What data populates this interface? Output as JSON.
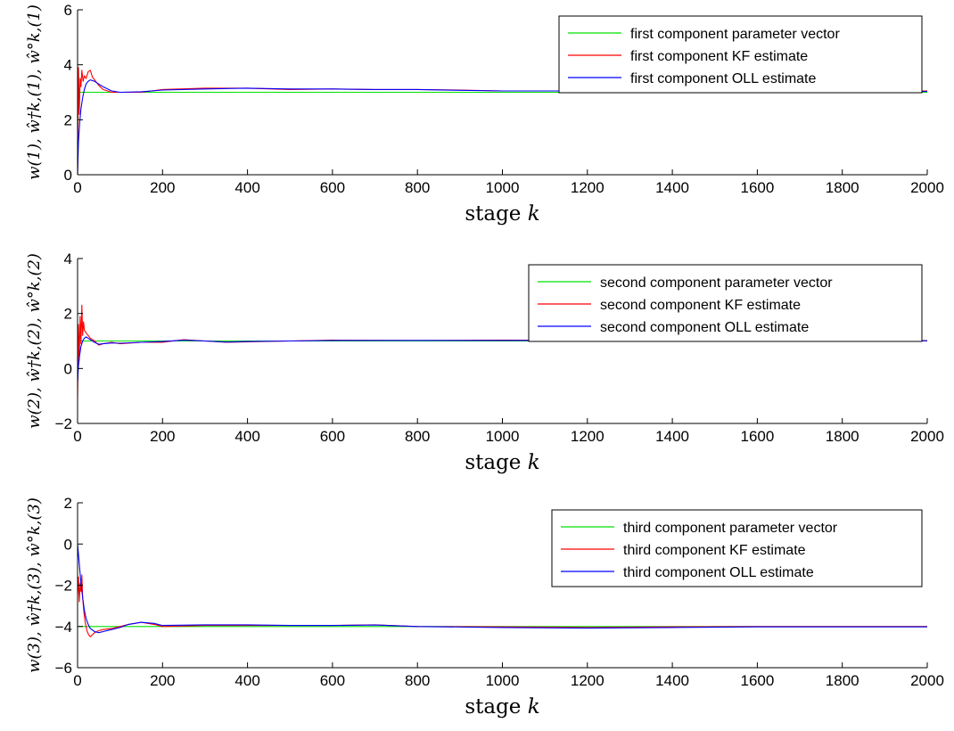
{
  "chart_data": [
    {
      "type": "line",
      "xlabel": "stage k",
      "ylabel": "w(1), ŵ†k,(1), ŵ°k,(1)",
      "xlim": [
        0,
        2000
      ],
      "ylim": [
        0,
        6
      ],
      "xticks": [
        0,
        200,
        400,
        600,
        800,
        1000,
        1200,
        1400,
        1600,
        1800,
        2000
      ],
      "yticks": [
        0,
        2,
        4,
        6
      ],
      "grid": false,
      "legend_position": "top-right",
      "series": [
        {
          "name": "first component parameter vector",
          "color": "#00e000",
          "x": [
            0,
            2000
          ],
          "y": [
            3.0,
            3.0
          ]
        },
        {
          "name": "first component KF estimate",
          "color": "#ff0000",
          "x": [
            0,
            2,
            4,
            6,
            8,
            10,
            13,
            16,
            20,
            25,
            30,
            35,
            40,
            50,
            60,
            80,
            100,
            150,
            200,
            300,
            400,
            500,
            600,
            700,
            800,
            900,
            1000,
            1200,
            1400,
            1600,
            1800,
            2000
          ],
          "y": [
            0.0,
            3.9,
            2.2,
            3.5,
            3.2,
            3.8,
            3.4,
            3.6,
            3.5,
            3.75,
            3.8,
            3.55,
            3.45,
            3.25,
            3.1,
            3.0,
            3.0,
            3.0,
            3.1,
            3.15,
            3.15,
            3.1,
            3.12,
            3.1,
            3.1,
            3.08,
            3.05,
            3.05,
            3.05,
            3.05,
            3.05,
            3.05
          ]
        },
        {
          "name": "first component OLL estimate",
          "color": "#0000ff",
          "x": [
            0,
            2,
            5,
            8,
            12,
            16,
            20,
            25,
            30,
            40,
            50,
            60,
            80,
            100,
            150,
            200,
            300,
            400,
            500,
            600,
            700,
            800,
            900,
            1000,
            1200,
            1400,
            1600,
            1800,
            2000
          ],
          "y": [
            0.0,
            1.2,
            1.9,
            2.4,
            2.8,
            3.1,
            3.3,
            3.4,
            3.45,
            3.4,
            3.3,
            3.2,
            3.05,
            3.0,
            3.02,
            3.08,
            3.12,
            3.15,
            3.12,
            3.12,
            3.1,
            3.1,
            3.07,
            3.05,
            3.05,
            3.05,
            3.04,
            3.04,
            3.03
          ]
        }
      ]
    },
    {
      "type": "line",
      "xlabel": "stage k",
      "ylabel": "w(2), ŵ†k,(2), ŵ°k,(2)",
      "xlim": [
        0,
        2000
      ],
      "ylim": [
        -2,
        4
      ],
      "xticks": [
        0,
        200,
        400,
        600,
        800,
        1000,
        1200,
        1400,
        1600,
        1800,
        2000
      ],
      "yticks": [
        -2,
        0,
        2,
        4
      ],
      "grid": false,
      "legend_position": "top-right",
      "series": [
        {
          "name": "second component parameter vector",
          "color": "#00e000",
          "x": [
            0,
            2000
          ],
          "y": [
            1.0,
            1.0
          ]
        },
        {
          "name": "second component KF estimate",
          "color": "#ff0000",
          "x": [
            0,
            2,
            4,
            6,
            8,
            10,
            12,
            14,
            16,
            20,
            25,
            30,
            40,
            50,
            60,
            80,
            100,
            150,
            200,
            250,
            300,
            350,
            400,
            500,
            600,
            800,
            1000,
            1200,
            1400,
            1600,
            1800,
            2000
          ],
          "y": [
            -1.1,
            1.6,
            0.3,
            1.9,
            0.9,
            2.3,
            1.2,
            1.7,
            1.4,
            1.3,
            1.2,
            1.1,
            1.0,
            0.85,
            0.9,
            0.95,
            0.9,
            0.95,
            0.95,
            1.05,
            1.0,
            0.95,
            0.97,
            1.0,
            1.03,
            1.02,
            1.03,
            1.02,
            1.02,
            1.01,
            1.01,
            1.01
          ]
        },
        {
          "name": "second component OLL estimate",
          "color": "#0000ff",
          "x": [
            0,
            2,
            5,
            8,
            12,
            16,
            20,
            25,
            30,
            40,
            50,
            60,
            80,
            100,
            150,
            200,
            250,
            300,
            350,
            400,
            500,
            600,
            800,
            1000,
            1200,
            1400,
            1600,
            1800,
            2000
          ],
          "y": [
            -0.5,
            0.1,
            0.5,
            0.8,
            1.0,
            1.1,
            1.15,
            1.1,
            1.05,
            0.95,
            0.88,
            0.9,
            0.93,
            0.92,
            0.95,
            0.98,
            1.03,
            1.0,
            0.96,
            0.98,
            1.0,
            1.02,
            1.02,
            1.02,
            1.02,
            1.01,
            1.01,
            1.01,
            1.01
          ]
        }
      ]
    },
    {
      "type": "line",
      "xlabel": "stage k",
      "ylabel": "w(3), ŵ†k,(3), ŵ°k,(3)",
      "xlim": [
        0,
        2000
      ],
      "ylim": [
        -6,
        2
      ],
      "xticks": [
        0,
        200,
        400,
        600,
        800,
        1000,
        1200,
        1400,
        1600,
        1800,
        2000
      ],
      "yticks": [
        -6,
        -4,
        -2,
        0,
        2
      ],
      "grid": false,
      "legend_position": "top-right",
      "series": [
        {
          "name": "third component parameter vector",
          "color": "#00e000",
          "x": [
            0,
            2000
          ],
          "y": [
            -4.0,
            -4.0
          ]
        },
        {
          "name": "third component KF estimate",
          "color": "#ff0000",
          "x": [
            0,
            2,
            4,
            6,
            8,
            10,
            12,
            15,
            18,
            22,
            26,
            30,
            35,
            40,
            50,
            60,
            80,
            100,
            120,
            150,
            180,
            200,
            300,
            400,
            500,
            600,
            700,
            800,
            1000,
            1200,
            1400,
            1600,
            1800,
            2000
          ],
          "y": [
            -2.5,
            -1.6,
            -2.8,
            -1.9,
            -2.3,
            -1.5,
            -2.6,
            -3.3,
            -3.8,
            -4.2,
            -4.4,
            -4.5,
            -4.4,
            -4.3,
            -4.2,
            -4.15,
            -4.1,
            -4.0,
            -3.9,
            -3.8,
            -3.9,
            -4.0,
            -3.95,
            -3.95,
            -3.95,
            -3.95,
            -3.92,
            -4.0,
            -4.02,
            -4.05,
            -4.02,
            -4.0,
            -4.0,
            -4.0
          ]
        },
        {
          "name": "third component OLL estimate",
          "color": "#0000ff",
          "x": [
            0,
            2,
            5,
            8,
            12,
            16,
            20,
            25,
            30,
            40,
            50,
            60,
            80,
            100,
            120,
            150,
            180,
            200,
            300,
            400,
            500,
            600,
            700,
            800,
            1000,
            1200,
            1400,
            1600,
            1800,
            2000
          ],
          "y": [
            0.0,
            -0.5,
            -1.2,
            -1.9,
            -2.6,
            -3.2,
            -3.6,
            -3.9,
            -4.1,
            -4.25,
            -4.3,
            -4.25,
            -4.15,
            -4.05,
            -3.9,
            -3.8,
            -3.85,
            -3.95,
            -3.92,
            -3.92,
            -3.95,
            -3.95,
            -3.93,
            -4.0,
            -4.05,
            -4.08,
            -4.05,
            -4.02,
            -4.02,
            -4.02
          ]
        }
      ]
    }
  ]
}
